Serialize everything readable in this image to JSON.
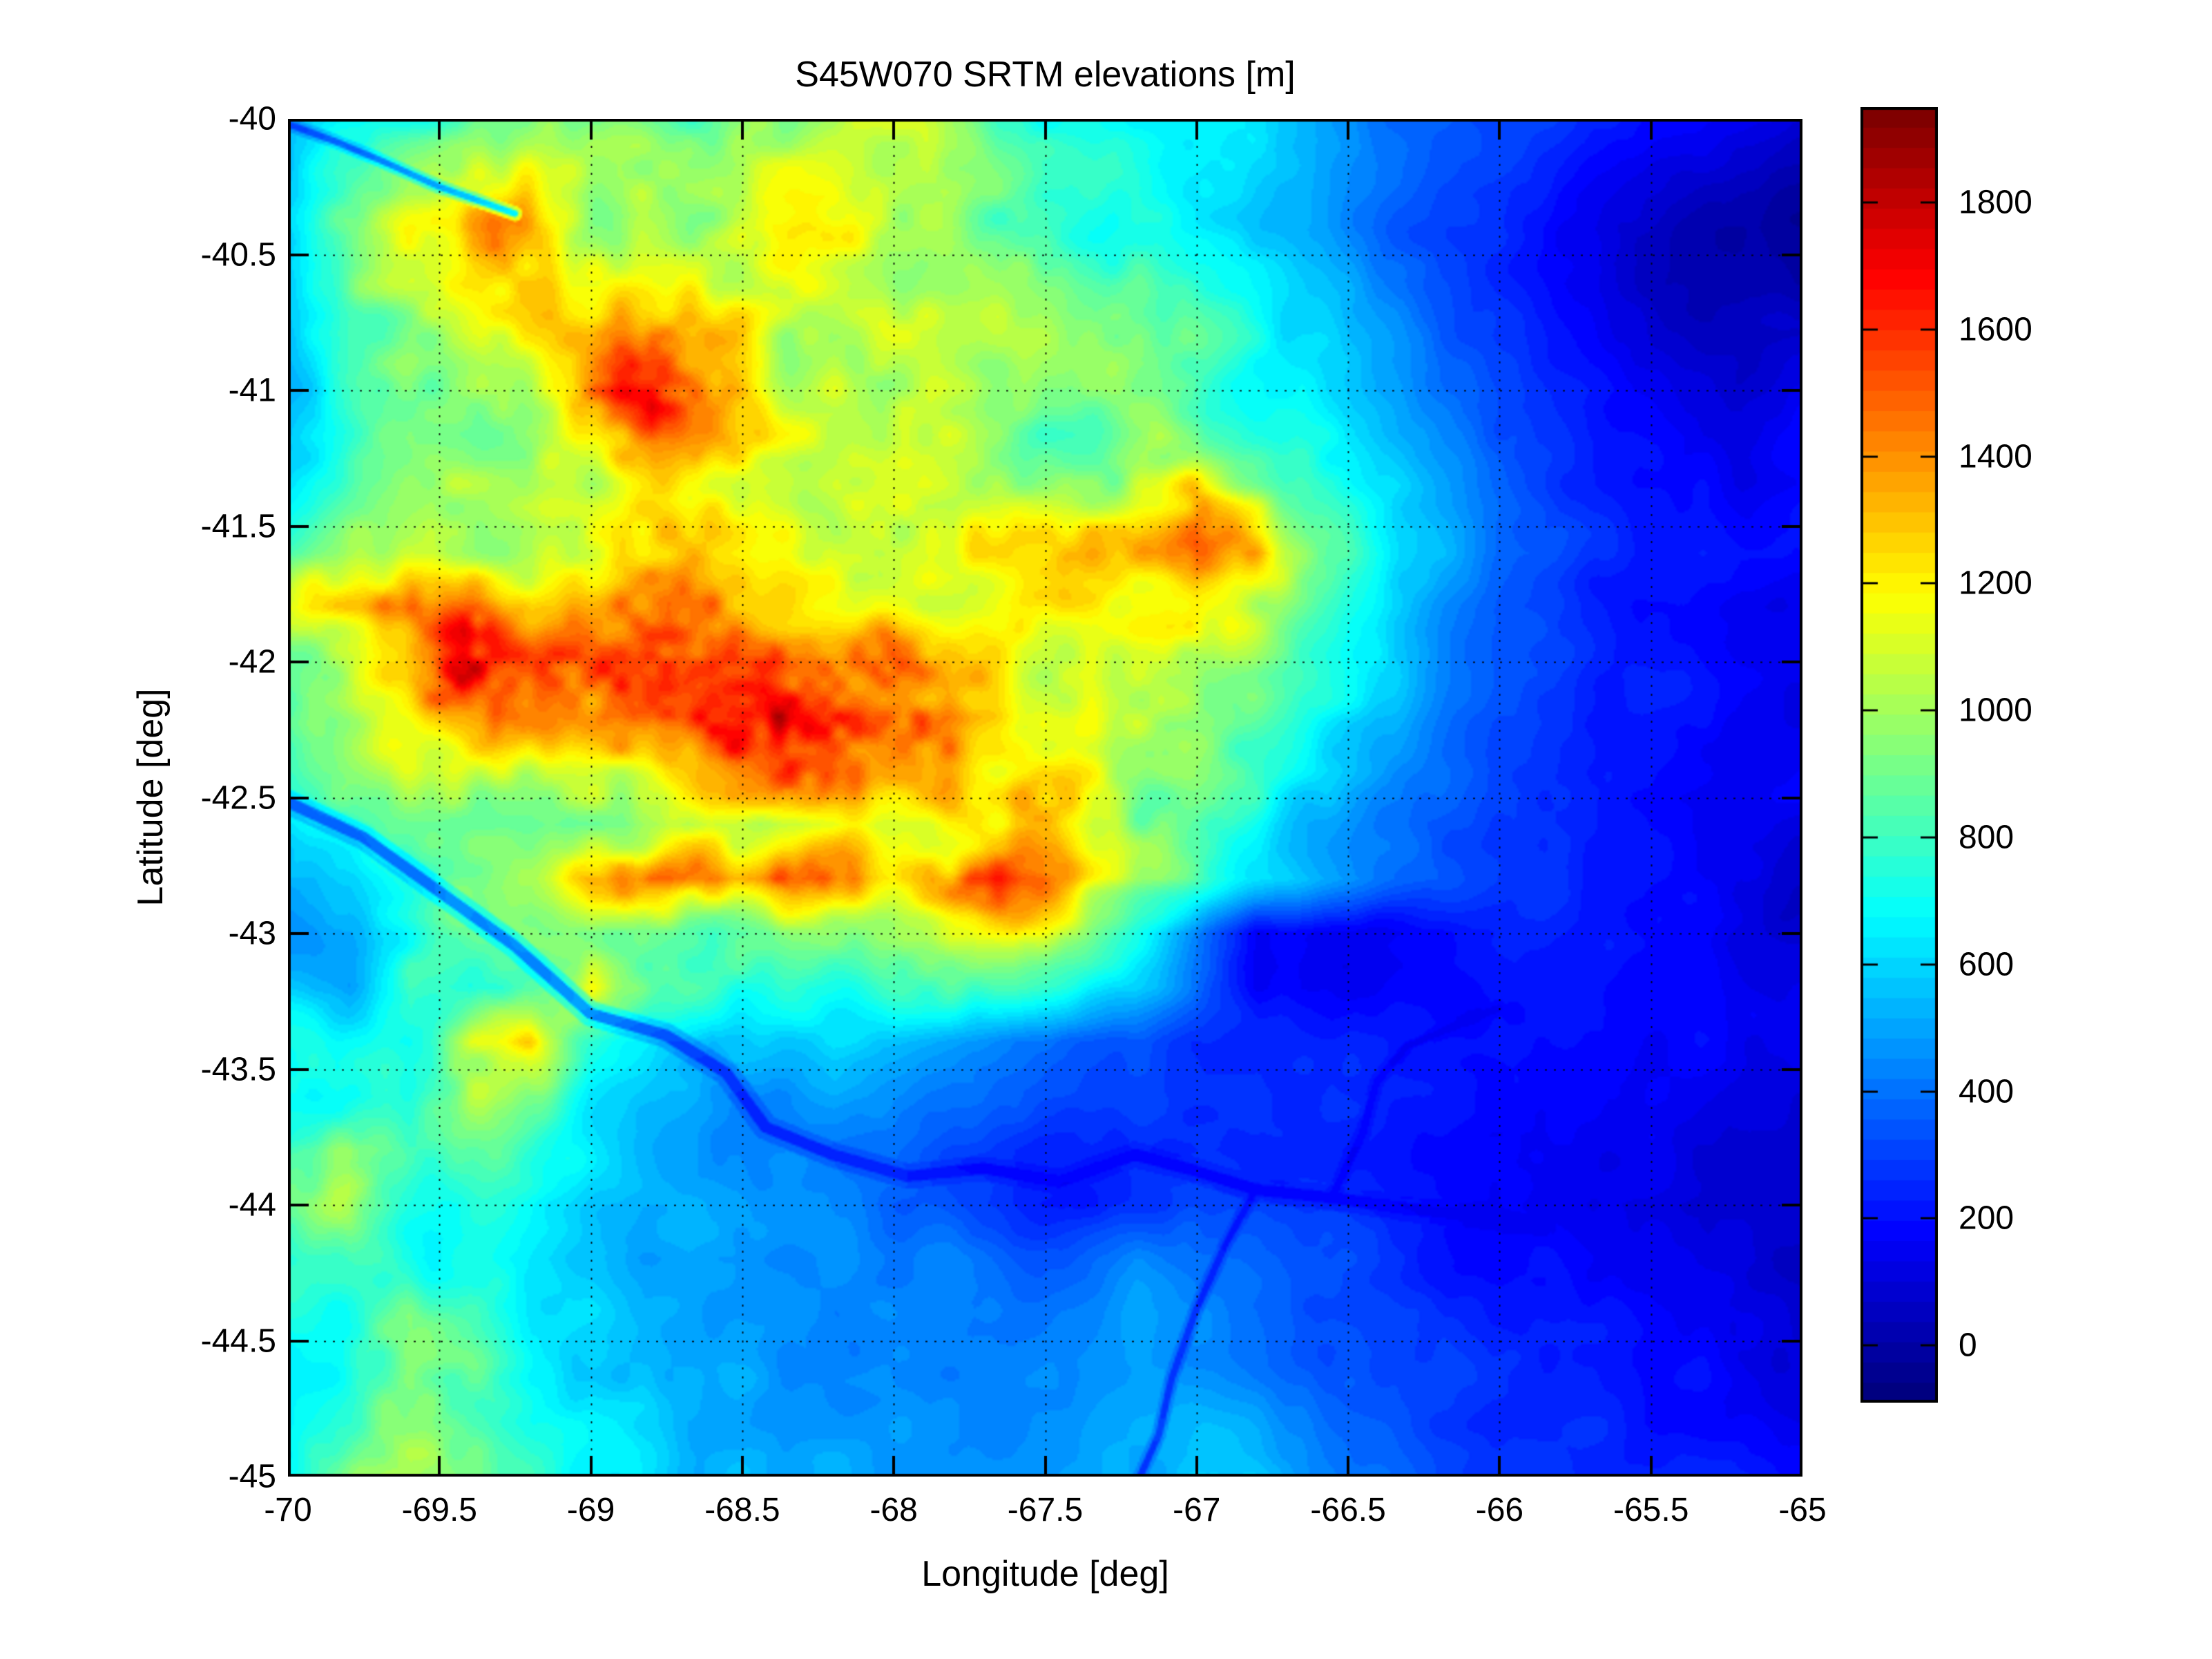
{
  "title": "S45W070 SRTM elevations [m]",
  "background_color": "#ffffff",
  "text_color": "#000000",
  "axes": {
    "xlabel": "Longitude [deg]",
    "ylabel": "Latitude [deg]",
    "xlim": [
      -70,
      -65
    ],
    "ylim": [
      -45,
      -40
    ],
    "x_tick_values": [
      -70,
      -69.5,
      -69,
      -68.5,
      -68,
      -67.5,
      -67,
      -66.5,
      -66,
      -65.5,
      -65
    ],
    "x_tick_labels": [
      "-70",
      "-69.5",
      "-69",
      "-68.5",
      "-68",
      "-67.5",
      "-67",
      "-66.5",
      "-66",
      "-65.5",
      "-65"
    ],
    "y_tick_values": [
      -40,
      -40.5,
      -41,
      -41.5,
      -42,
      -42.5,
      -43,
      -43.5,
      -44,
      -44.5,
      -45
    ],
    "y_tick_labels": [
      "-40",
      "-40.5",
      "-41",
      "-41.5",
      "-42",
      "-42.5",
      "-43",
      "-43.5",
      "-44",
      "-44.5",
      "-45"
    ],
    "grid": "dotted-black-at-0.5-deg"
  },
  "colorbar": {
    "tick_values": [
      0,
      200,
      400,
      600,
      800,
      1000,
      1200,
      1400,
      1600,
      1800
    ],
    "tick_labels": [
      "0",
      "200",
      "400",
      "600",
      "800",
      "1000",
      "1200",
      "1400",
      "1600",
      "1800"
    ],
    "cmin": -90,
    "cmax": 1950,
    "colormap": "jet",
    "levels": 64
  },
  "chart_data": {
    "type": "heatmap",
    "title": "S45W070 SRTM elevations [m]",
    "xlabel": "Longitude [deg]",
    "ylabel": "Latitude [deg]",
    "units": "m",
    "colormap": "jet",
    "clim": [
      -90,
      1950
    ],
    "lon_min": -70,
    "lon_max": -65,
    "lon_step": 0.2,
    "lat_min": -40,
    "lat_max": -45,
    "lat_step": -0.2,
    "grid_order": "rows from lat -40 (north, top) to -45 (south); columns from lon -70 (west) to -65 (east)",
    "elevation_grid_m": [
      [
        550,
        700,
        820,
        900,
        950,
        950,
        900,
        950,
        1000,
        1000,
        950,
        900,
        850,
        800,
        750,
        700,
        600,
        500,
        400,
        350,
        300,
        250,
        200,
        150,
        120,
        100
      ],
      [
        650,
        850,
        1000,
        1100,
        1150,
        1050,
        1000,
        1000,
        1050,
        1050,
        1000,
        950,
        900,
        850,
        800,
        700,
        600,
        500,
        400,
        330,
        280,
        220,
        150,
        100,
        60,
        50
      ],
      [
        700,
        950,
        1150,
        1250,
        1300,
        1150,
        1100,
        1100,
        1200,
        1150,
        1050,
        1000,
        950,
        850,
        800,
        700,
        600,
        500,
        380,
        300,
        250,
        180,
        120,
        70,
        40,
        40
      ],
      [
        650,
        900,
        1100,
        1200,
        1250,
        1200,
        1150,
        1150,
        1200,
        1150,
        1050,
        1000,
        950,
        900,
        850,
        750,
        650,
        550,
        420,
        320,
        260,
        200,
        130,
        80,
        50,
        60
      ],
      [
        600,
        800,
        950,
        1050,
        1100,
        1250,
        1450,
        1300,
        1150,
        1100,
        1050,
        1000,
        950,
        900,
        850,
        800,
        700,
        600,
        450,
        350,
        280,
        220,
        150,
        100,
        80,
        100
      ],
      [
        550,
        750,
        900,
        1000,
        1050,
        1300,
        1550,
        1350,
        1150,
        1100,
        1050,
        1000,
        950,
        900,
        900,
        850,
        750,
        650,
        500,
        400,
        320,
        250,
        180,
        130,
        100,
        150
      ],
      [
        600,
        800,
        950,
        1000,
        1000,
        1100,
        1250,
        1200,
        1100,
        1050,
        1000,
        1000,
        1000,
        1000,
        1050,
        1100,
        900,
        750,
        600,
        450,
        350,
        280,
        200,
        150,
        120,
        180
      ],
      [
        700,
        900,
        1000,
        1050,
        1000,
        1050,
        1100,
        1100,
        1050,
        1050,
        1050,
        1050,
        1100,
        1100,
        1200,
        1350,
        1100,
        850,
        650,
        500,
        380,
        300,
        220,
        170,
        150,
        200
      ],
      [
        800,
        1000,
        1100,
        1100,
        1050,
        1100,
        1150,
        1100,
        1100,
        1100,
        1100,
        1100,
        1150,
        1200,
        1300,
        1500,
        1200,
        900,
        700,
        550,
        420,
        330,
        250,
        200,
        180,
        220
      ],
      [
        1100,
        1250,
        1350,
        1450,
        1300,
        1300,
        1350,
        1300,
        1250,
        1200,
        1150,
        1100,
        1100,
        1100,
        1150,
        1250,
        1000,
        800,
        650,
        500,
        400,
        300,
        230,
        180,
        150,
        170
      ],
      [
        950,
        1100,
        1250,
        1600,
        1500,
        1550,
        1600,
        1700,
        1750,
        1600,
        1500,
        1300,
        1200,
        1150,
        1100,
        1050,
        900,
        750,
        600,
        480,
        380,
        300,
        230,
        190,
        160,
        180
      ],
      [
        900,
        1000,
        1150,
        1350,
        1450,
        1500,
        1550,
        1800,
        1850,
        1750,
        1650,
        1400,
        1250,
        1150,
        1100,
        1000,
        850,
        700,
        550,
        450,
        350,
        280,
        220,
        180,
        150,
        160
      ],
      [
        850,
        950,
        1050,
        1150,
        1200,
        1250,
        1300,
        1450,
        1500,
        1450,
        1300,
        1200,
        1150,
        1100,
        1000,
        900,
        800,
        650,
        520,
        420,
        330,
        260,
        210,
        170,
        140,
        150
      ],
      [
        650,
        750,
        850,
        950,
        1000,
        1050,
        1100,
        1100,
        1050,
        1050,
        1050,
        1100,
        1150,
        1050,
        950,
        850,
        700,
        550,
        450,
        380,
        300,
        250,
        200,
        160,
        130,
        140
      ],
      [
        550,
        600,
        750,
        900,
        1000,
        1400,
        1550,
        1450,
        1500,
        1300,
        1150,
        1350,
        1400,
        1200,
        1000,
        850,
        700,
        550,
        430,
        350,
        280,
        230,
        190,
        150,
        120,
        130
      ],
      [
        500,
        550,
        700,
        850,
        900,
        1000,
        950,
        900,
        850,
        900,
        950,
        1100,
        1200,
        1000,
        700,
        450,
        200,
        150,
        150,
        180,
        220,
        220,
        180,
        140,
        110,
        120
      ],
      [
        550,
        500,
        900,
        700,
        800,
        1200,
        850,
        750,
        700,
        700,
        750,
        800,
        850,
        750,
        600,
        400,
        180,
        160,
        170,
        190,
        210,
        200,
        170,
        140,
        110,
        110
      ],
      [
        650,
        700,
        750,
        1100,
        1150,
        800,
        650,
        500,
        550,
        600,
        550,
        500,
        450,
        400,
        350,
        300,
        280,
        250,
        230,
        220,
        220,
        200,
        180,
        150,
        120,
        110
      ],
      [
        700,
        750,
        800,
        1000,
        900,
        700,
        600,
        500,
        450,
        500,
        450,
        400,
        380,
        350,
        320,
        300,
        280,
        260,
        250,
        230,
        220,
        200,
        180,
        160,
        130,
        100
      ],
      [
        900,
        1100,
        850,
        800,
        750,
        650,
        550,
        500,
        450,
        400,
        380,
        320,
        300,
        280,
        260,
        260,
        250,
        240,
        230,
        220,
        210,
        190,
        170,
        150,
        130,
        110
      ],
      [
        950,
        1000,
        800,
        700,
        650,
        600,
        550,
        500,
        450,
        420,
        350,
        300,
        280,
        260,
        280,
        300,
        280,
        260,
        240,
        220,
        200,
        180,
        160,
        140,
        120,
        100
      ],
      [
        800,
        850,
        750,
        700,
        600,
        550,
        500,
        480,
        450,
        420,
        400,
        380,
        350,
        400,
        450,
        400,
        350,
        320,
        280,
        250,
        230,
        210,
        190,
        160,
        130,
        110
      ],
      [
        750,
        800,
        900,
        800,
        650,
        600,
        550,
        500,
        480,
        450,
        430,
        420,
        400,
        450,
        500,
        450,
        400,
        300,
        280,
        260,
        240,
        220,
        200,
        170,
        140,
        120
      ],
      [
        700,
        800,
        1000,
        900,
        700,
        650,
        600,
        550,
        500,
        480,
        450,
        430,
        420,
        450,
        480,
        450,
        400,
        320,
        300,
        280,
        260,
        240,
        210,
        180,
        150,
        130
      ],
      [
        700,
        800,
        950,
        800,
        700,
        650,
        600,
        570,
        530,
        500,
        480,
        450,
        440,
        460,
        500,
        520,
        480,
        400,
        350,
        300,
        280,
        260,
        230,
        200,
        170,
        150
      ],
      [
        750,
        850,
        950,
        850,
        750,
        650,
        600,
        580,
        550,
        520,
        500,
        480,
        470,
        500,
        550,
        600,
        550,
        450,
        380,
        330,
        300,
        280,
        250,
        220,
        180,
        160
      ]
    ],
    "rivers": [
      {
        "name": "nw-drainage",
        "width": 3.2,
        "strength": 0.4,
        "path": [
          [
            -69.25,
            -40.35
          ],
          [
            -69.5,
            -40.25
          ],
          [
            -69.7,
            -40.15
          ],
          [
            -69.85,
            -40.08
          ],
          [
            -70,
            -40.02
          ]
        ]
      },
      {
        "name": "main-valley-river",
        "width": 5.5,
        "strength": 0.55,
        "path": [
          [
            -70,
            -42.52
          ],
          [
            -69.75,
            -42.65
          ],
          [
            -69.5,
            -42.85
          ],
          [
            -69.25,
            -43.05
          ],
          [
            -69.0,
            -43.3
          ],
          [
            -68.75,
            -43.38
          ],
          [
            -68.55,
            -43.52
          ],
          [
            -68.42,
            -43.72
          ],
          [
            -68.2,
            -43.82
          ],
          [
            -67.95,
            -43.9
          ],
          [
            -67.7,
            -43.87
          ],
          [
            -67.45,
            -43.92
          ],
          [
            -67.2,
            -43.82
          ],
          [
            -67.0,
            -43.88
          ],
          [
            -66.8,
            -43.95
          ],
          [
            -66.55,
            -43.98
          ],
          [
            -66.3,
            -44.02
          ],
          [
            -66.05,
            -44.05
          ],
          [
            -65.85,
            -44.1
          ]
        ]
      },
      {
        "name": "northeast-branch",
        "width": 3.5,
        "strength": 0.45,
        "path": [
          [
            -66.55,
            -43.98
          ],
          [
            -66.45,
            -43.75
          ],
          [
            -66.4,
            -43.55
          ],
          [
            -66.3,
            -43.42
          ],
          [
            -66.15,
            -43.35
          ],
          [
            -66.0,
            -43.28
          ]
        ]
      },
      {
        "name": "south-branch",
        "width": 3.2,
        "strength": 0.42,
        "path": [
          [
            -66.8,
            -43.95
          ],
          [
            -66.9,
            -44.15
          ],
          [
            -67.0,
            -44.4
          ],
          [
            -67.08,
            -44.65
          ],
          [
            -67.12,
            -44.85
          ],
          [
            -67.18,
            -45.0
          ]
        ]
      }
    ]
  }
}
